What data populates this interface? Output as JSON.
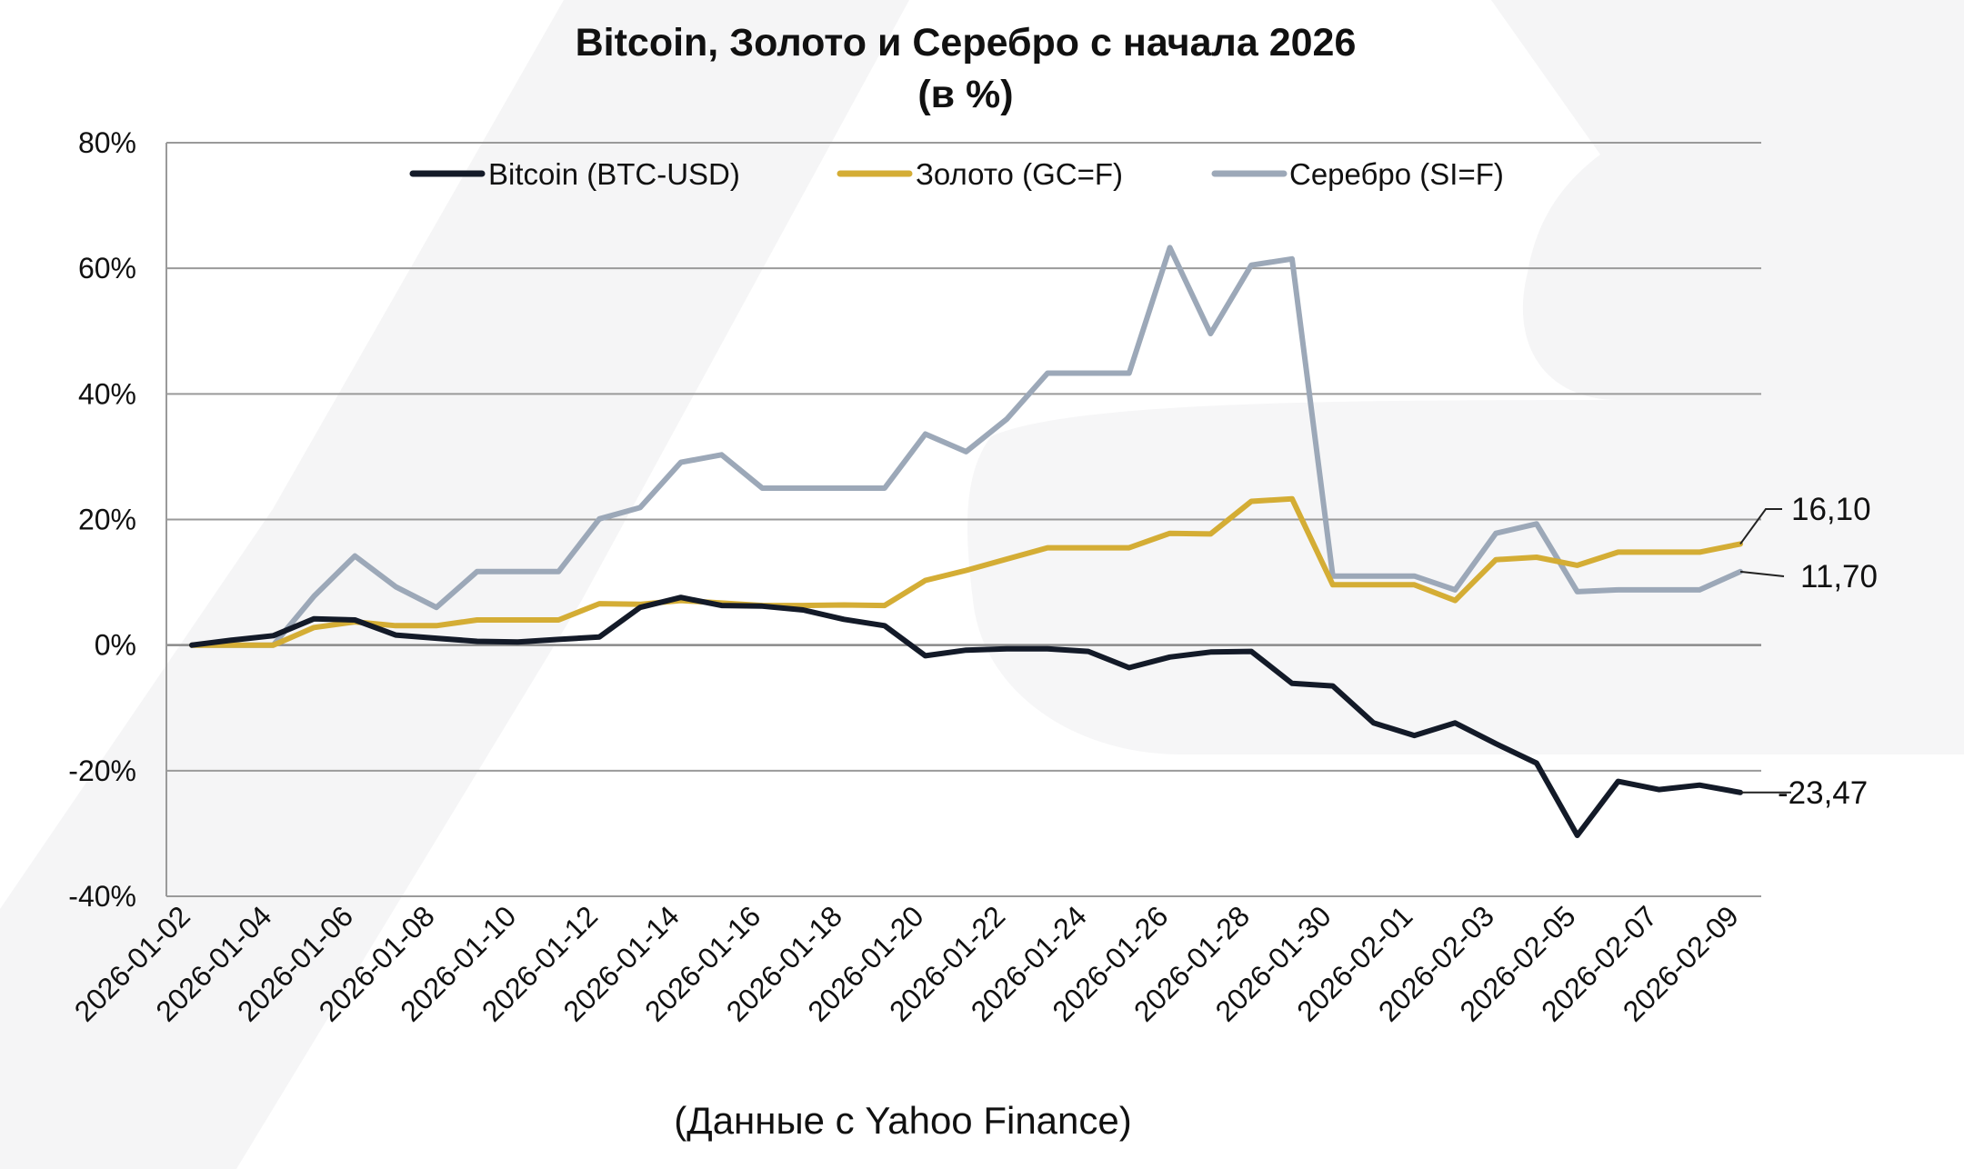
{
  "chart_data": {
    "type": "line",
    "title": "Bitcoin, Золото и Серебро с начала 2026",
    "subtitle": "(в %)",
    "source_note": "(Данные с Yahoo Finance)",
    "ylim": [
      -40,
      80
    ],
    "y_ticks": [
      "80%",
      "60%",
      "40%",
      "20%",
      "0%",
      "-20%",
      "-40%"
    ],
    "y_tick_values": [
      80,
      60,
      40,
      20,
      0,
      -20,
      -40
    ],
    "x_tick_labels": [
      "2026-01-02",
      "2026-01-04",
      "2026-01-06",
      "2026-01-08",
      "2026-01-10",
      "2026-01-12",
      "2026-01-14",
      "2026-01-16",
      "2026-01-18",
      "2026-01-20",
      "2026-01-22",
      "2026-01-24",
      "2026-01-26",
      "2026-01-28",
      "2026-01-30",
      "2026-02-01",
      "2026-02-03",
      "2026-02-05",
      "2026-02-07",
      "2026-02-09"
    ],
    "x": [
      "2026-01-02",
      "2026-01-03",
      "2026-01-04",
      "2026-01-05",
      "2026-01-06",
      "2026-01-07",
      "2026-01-08",
      "2026-01-09",
      "2026-01-10",
      "2026-01-11",
      "2026-01-12",
      "2026-01-13",
      "2026-01-14",
      "2026-01-15",
      "2026-01-16",
      "2026-01-17",
      "2026-01-18",
      "2026-01-19",
      "2026-01-20",
      "2026-01-21",
      "2026-01-22",
      "2026-01-23",
      "2026-01-24",
      "2026-01-25",
      "2026-01-26",
      "2026-01-27",
      "2026-01-28",
      "2026-01-29",
      "2026-01-30",
      "2026-01-31",
      "2026-02-01",
      "2026-02-02",
      "2026-02-03",
      "2026-02-04",
      "2026-02-05",
      "2026-02-06",
      "2026-02-07",
      "2026-02-08",
      "2026-02-09"
    ],
    "series": [
      {
        "name": "Bitcoin (BTC-USD)",
        "color": "#131a28",
        "values": [
          0,
          0.8,
          1.5,
          4.2,
          4.0,
          1.6,
          1.1,
          0.6,
          0.5,
          0.9,
          1.3,
          6.0,
          7.6,
          6.3,
          6.2,
          5.6,
          4.1,
          3.1,
          -1.7,
          -0.8,
          -0.6,
          -0.6,
          -1.0,
          -3.6,
          -1.9,
          -1.1,
          -1.0,
          -6.1,
          -6.5,
          -12.4,
          -14.4,
          -12.4,
          -15.7,
          -18.8,
          -30.3,
          -21.7,
          -23.0,
          -22.3,
          -23.47
        ],
        "end_label": "-23,47"
      },
      {
        "name": "Золото (GC=F)",
        "color": "#d4ad35",
        "values": [
          0,
          0,
          0,
          2.8,
          3.7,
          3.1,
          3.1,
          4.0,
          4.0,
          4.0,
          6.6,
          6.5,
          7.1,
          6.7,
          6.3,
          6.3,
          6.4,
          6.3,
          10.3,
          11.9,
          13.7,
          15.5,
          15.5,
          15.5,
          17.8,
          17.7,
          22.9,
          23.3,
          9.6,
          9.6,
          9.6,
          7.1,
          13.6,
          14.0,
          12.7,
          14.8,
          14.8,
          14.8,
          16.1
        ],
        "end_label": "16,10"
      },
      {
        "name": "Серебро (SI=F)",
        "color": "#9ca8b8",
        "values": [
          0,
          0,
          0,
          7.8,
          14.2,
          9.3,
          6.0,
          11.7,
          11.7,
          11.7,
          20.1,
          21.9,
          29.1,
          30.3,
          25.0,
          25.0,
          25.0,
          25.0,
          33.6,
          30.8,
          36.0,
          43.3,
          43.3,
          43.3,
          63.3,
          49.6,
          60.5,
          61.5,
          11.0,
          11.0,
          11.0,
          8.8,
          17.8,
          19.3,
          8.5,
          8.8,
          8.8,
          8.8,
          11.7
        ],
        "end_label": "11,70"
      }
    ],
    "legend": {
      "placement": "top-center"
    },
    "grid": "horizontal"
  }
}
